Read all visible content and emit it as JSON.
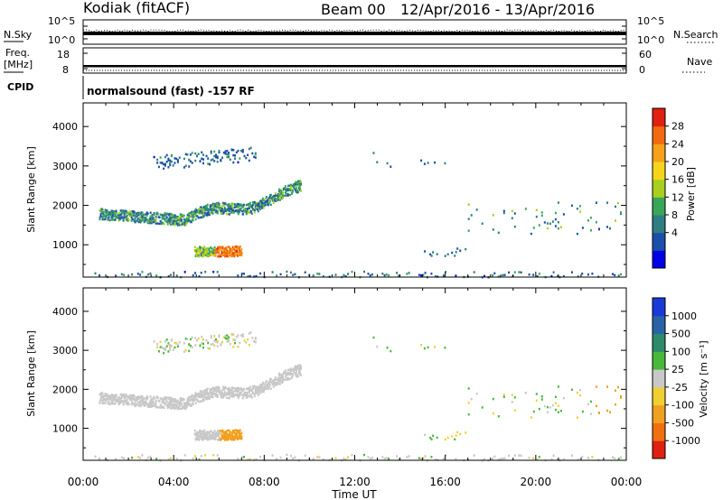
{
  "header": {
    "station": "Kodiak (fitACF)",
    "beam": "Beam 00",
    "date_range": "12/Apr/2016 - 13/Apr/2016"
  },
  "noise_panel": {
    "left_label": "N.Sky",
    "right_label": "N.Search",
    "left_ticks": [
      "10^5",
      "10^0"
    ],
    "right_ticks": [
      "10^5",
      "10^0"
    ]
  },
  "freq_panel": {
    "left_label_1": "Freq.",
    "left_label_2": "[MHz]",
    "right_label": "Nave",
    "left_ticks": [
      "18",
      "8"
    ],
    "right_ticks": [
      "60",
      "0"
    ]
  },
  "cpid": {
    "label": "CPID",
    "value": "normalsound (fast) -157 RF"
  },
  "chart_data": [
    {
      "type": "heatmap",
      "panel": "power",
      "ylabel": "Slant Range [km]",
      "ylim": [
        180,
        4600
      ],
      "yticks": [
        "1000",
        "2000",
        "3000",
        "4000"
      ],
      "colorbar_label": "Power [dB]",
      "colorbar_ticks": [
        "4",
        "8",
        "12",
        "16",
        "20",
        "24",
        "28"
      ],
      "colors": [
        "#0000e6",
        "#1a4faa",
        "#2e7e84",
        "#3aa65a",
        "#a8cf1e",
        "#f5d51a",
        "#f5a21a",
        "#f26a10",
        "#e02010"
      ],
      "features": [
        {
          "name": "lower band",
          "t_start": 0.7,
          "t_end": 9.6,
          "range_start_km": 1800,
          "range_mid_km": 1650,
          "range_end_km": 2400
        },
        {
          "name": "near echo",
          "t_start": 4.9,
          "t_end": 7.0,
          "range_km": 850
        },
        {
          "name": "upper band",
          "t_start": 3.1,
          "t_end": 7.6,
          "range_km": 3200
        },
        {
          "name": "morning band",
          "t_start": 17.0,
          "t_end": 24.0,
          "range_km": 1700
        },
        {
          "name": "near-ground",
          "t_start": 0.5,
          "t_end": 24.0,
          "range_km": 250
        }
      ]
    },
    {
      "type": "heatmap",
      "panel": "velocity",
      "ylabel": "Slant Range [km]",
      "ylim": [
        180,
        4600
      ],
      "yticks": [
        "1000",
        "2000",
        "3000",
        "4000"
      ],
      "colorbar_label": "Velocity [m s⁻¹]",
      "colorbar_ticks": [
        "1000",
        "500",
        "100",
        "25",
        "-25",
        "-100",
        "-500",
        "-1000"
      ],
      "colors": [
        "#1a3ad8",
        "#2a62a8",
        "#2d8a6c",
        "#48b83a",
        "#c8c8c8",
        "#f0d030",
        "#f0a020",
        "#f07010",
        "#e02010"
      ]
    }
  ],
  "xaxis": {
    "label": "Time UT",
    "ticks": [
      "00:00",
      "04:00",
      "08:00",
      "12:00",
      "16:00",
      "20:00",
      "00:00"
    ]
  }
}
